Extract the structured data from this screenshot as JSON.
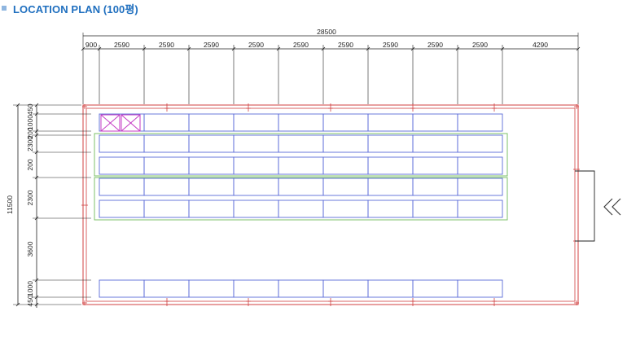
{
  "title": "LOCATION PLAN (100평)",
  "colors": {
    "title": "#1f6fbf",
    "wall": "#d04040",
    "rack": "#5a6ad8",
    "zone": "#7cc26a",
    "unit": "#c43ac4",
    "dimension": "#222222"
  },
  "dimensions": {
    "total_width": "28500",
    "top_segments": [
      "900",
      "2590",
      "2590",
      "2590",
      "2590",
      "2590",
      "2590",
      "2590",
      "2590",
      "2590",
      "4290"
    ],
    "total_height": "11500",
    "left_segments": [
      "450",
      "1000",
      "200",
      "2300",
      "200",
      "2300",
      "3600",
      "1000",
      "450"
    ]
  },
  "rack_rows": {
    "cells_per_row": 9,
    "row_count": 6
  },
  "marked_units": 2,
  "entrance_icon": "double-chevron-left-icon"
}
